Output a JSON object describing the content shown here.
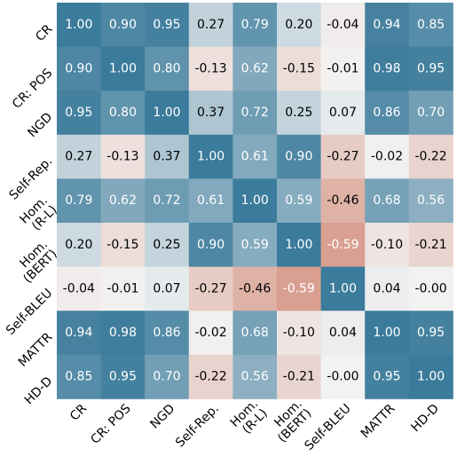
{
  "chart_data": {
    "type": "heatmap",
    "title": "",
    "xlabel": "",
    "ylabel": "",
    "row_labels": [
      [
        "CR"
      ],
      [
        "CR: POS"
      ],
      [
        "NGD"
      ],
      [
        "Self-Rep."
      ],
      [
        "Hom.",
        "(R-L)"
      ],
      [
        "Hom.",
        "(BERT)"
      ],
      [
        "Self-BLEU"
      ],
      [
        "MATTR"
      ],
      [
        "HD-D"
      ]
    ],
    "col_labels": [
      [
        "CR"
      ],
      [
        "CR: POS"
      ],
      [
        "NGD"
      ],
      [
        "Self-Rep."
      ],
      [
        "Hom.",
        "(R-L)"
      ],
      [
        "Hom.",
        "(BERT)"
      ],
      [
        "Self-BLEU"
      ],
      [
        "MATTR"
      ],
      [
        "HD-D"
      ]
    ],
    "values": [
      [
        1.0,
        0.9,
        0.95,
        0.27,
        0.79,
        0.2,
        -0.04,
        0.94,
        0.85
      ],
      [
        0.9,
        1.0,
        0.8,
        -0.13,
        0.62,
        -0.15,
        -0.01,
        0.98,
        0.95
      ],
      [
        0.95,
        0.8,
        1.0,
        0.37,
        0.72,
        0.25,
        0.07,
        0.86,
        0.7
      ],
      [
        0.27,
        -0.13,
        0.37,
        1.0,
        0.61,
        0.9,
        -0.27,
        -0.02,
        -0.22
      ],
      [
        0.79,
        0.62,
        0.72,
        0.61,
        1.0,
        0.59,
        -0.46,
        0.68,
        0.56
      ],
      [
        0.2,
        -0.15,
        0.25,
        0.9,
        0.59,
        1.0,
        -0.59,
        -0.1,
        -0.21
      ],
      [
        -0.04,
        -0.01,
        0.07,
        -0.27,
        -0.46,
        -0.59,
        1.0,
        0.04,
        -0.0
      ],
      [
        0.94,
        0.98,
        0.86,
        -0.02,
        0.68,
        -0.1,
        0.04,
        1.0,
        0.95
      ],
      [
        0.85,
        0.95,
        0.7,
        -0.22,
        0.56,
        -0.21,
        -0.0,
        0.95,
        1.0
      ]
    ],
    "display": [
      [
        "1.00",
        "0.90",
        "0.95",
        "0.27",
        "0.79",
        "0.20",
        "-0.04",
        "0.94",
        "0.85"
      ],
      [
        "0.90",
        "1.00",
        "0.80",
        "-0.13",
        "0.62",
        "-0.15",
        "-0.01",
        "0.98",
        "0.95"
      ],
      [
        "0.95",
        "0.80",
        "1.00",
        "0.37",
        "0.72",
        "0.25",
        "0.07",
        "0.86",
        "0.70"
      ],
      [
        "0.27",
        "-0.13",
        "0.37",
        "1.00",
        "0.61",
        "0.90",
        "-0.27",
        "-0.02",
        "-0.22"
      ],
      [
        "0.79",
        "0.62",
        "0.72",
        "0.61",
        "1.00",
        "0.59",
        "-0.46",
        "0.68",
        "0.56"
      ],
      [
        "0.20",
        "-0.15",
        "0.25",
        "0.90",
        "0.59",
        "1.00",
        "-0.59",
        "-0.10",
        "-0.21"
      ],
      [
        "-0.04",
        "-0.01",
        "0.07",
        "-0.27",
        "-0.46",
        "-0.59",
        "1.00",
        "0.04",
        "-0.00"
      ],
      [
        "0.94",
        "0.98",
        "0.86",
        "-0.02",
        "0.68",
        "-0.10",
        "0.04",
        "1.00",
        "0.95"
      ],
      [
        "0.85",
        "0.95",
        "0.70",
        "-0.22",
        "0.56",
        "-0.21",
        "-0.00",
        "0.95",
        "1.00"
      ]
    ],
    "color_range": [
      -1,
      1
    ],
    "colors": {
      "positive": "#3b7b9b",
      "neutral": "#f2f2f2",
      "negative": "#c8664d",
      "light_text": "#ffffff",
      "dark_text": "#000000"
    },
    "grid": false,
    "legend": "none"
  }
}
